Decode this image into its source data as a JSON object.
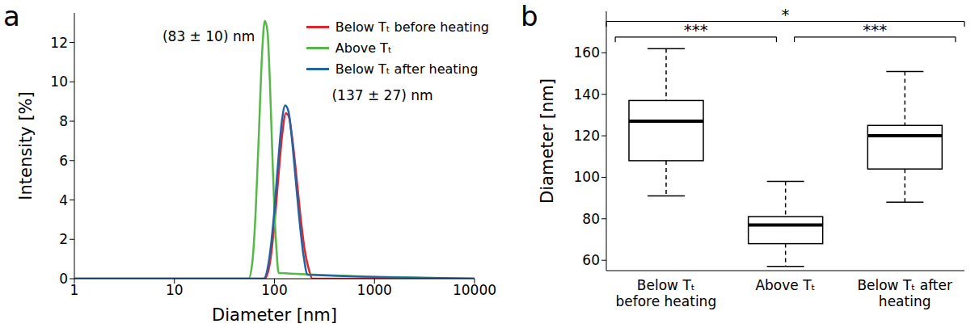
{
  "chart_data": [
    {
      "panel": "a",
      "type": "line",
      "xlabel": "Diameter [nm]",
      "ylabel": "Intensity [%]",
      "log": "x",
      "xlim": [
        1,
        10000
      ],
      "xticks": [
        1,
        10,
        100,
        1000,
        10000
      ],
      "ylim": [
        0,
        13.5
      ],
      "yticks": [
        0,
        2,
        4,
        6,
        8,
        10,
        12
      ],
      "grid": false,
      "legend": "upper right",
      "series": [
        {
          "name": "Below Tₜ before heating",
          "color": "#e4232b",
          "x": [
            1,
            80,
            90,
            100,
            110,
            120,
            130,
            140,
            150,
            165,
            180,
            200,
            220,
            240,
            10000
          ],
          "values": [
            0,
            0,
            0.8,
            2.8,
            5.3,
            7.4,
            8.4,
            8.2,
            7.2,
            5.3,
            3.4,
            1.5,
            0.5,
            0,
            0
          ]
        },
        {
          "name": "Above Tₜ",
          "color": "#55b848",
          "x": [
            1,
            55,
            60,
            65,
            70,
            75,
            80,
            85,
            90,
            95,
            100,
            105,
            110,
            10000
          ],
          "values": [
            0,
            0,
            0.8,
            3.5,
            7.5,
            11.3,
            13.1,
            12.6,
            10,
            6.5,
            3.4,
            1.4,
            0.3,
            0
          ]
        },
        {
          "name": "Below Tₜ after heating",
          "color": "#2163a3",
          "x": [
            1,
            78,
            88,
            98,
            108,
            118,
            128,
            138,
            148,
            162,
            176,
            195,
            215,
            10000
          ],
          "values": [
            0,
            0,
            0.9,
            3.0,
            5.7,
            7.9,
            8.8,
            8.5,
            7.3,
            5.2,
            3.2,
            1.2,
            0.2,
            0
          ]
        }
      ],
      "annotations": [
        {
          "text": "(83 ± 10) nm",
          "x": 22,
          "y": 12.3
        },
        {
          "text": "(137 ± 27) nm",
          "x": 1200,
          "y": 9.3
        }
      ]
    },
    {
      "panel": "b",
      "type": "box",
      "ylabel": "Diameter [nm]",
      "ylim": [
        55,
        180
      ],
      "yticks": [
        60,
        80,
        100,
        120,
        140,
        160
      ],
      "grid": false,
      "color": "#000000",
      "categories": [
        "Below Tₜ before heating",
        "Above Tₜ",
        "Below Tₜ after heating"
      ],
      "whisker_low": [
        91,
        57,
        88
      ],
      "q1": [
        108,
        68,
        104
      ],
      "median": [
        127,
        77,
        120
      ],
      "q3": [
        137,
        81,
        125
      ],
      "whisker_high": [
        162,
        98,
        151
      ],
      "comparisons": [
        {
          "pair": [
            0,
            1
          ],
          "label": "***"
        },
        {
          "pair": [
            1,
            2
          ],
          "label": "***"
        },
        {
          "pair": [
            0,
            2
          ],
          "label": "*"
        }
      ]
    }
  ]
}
